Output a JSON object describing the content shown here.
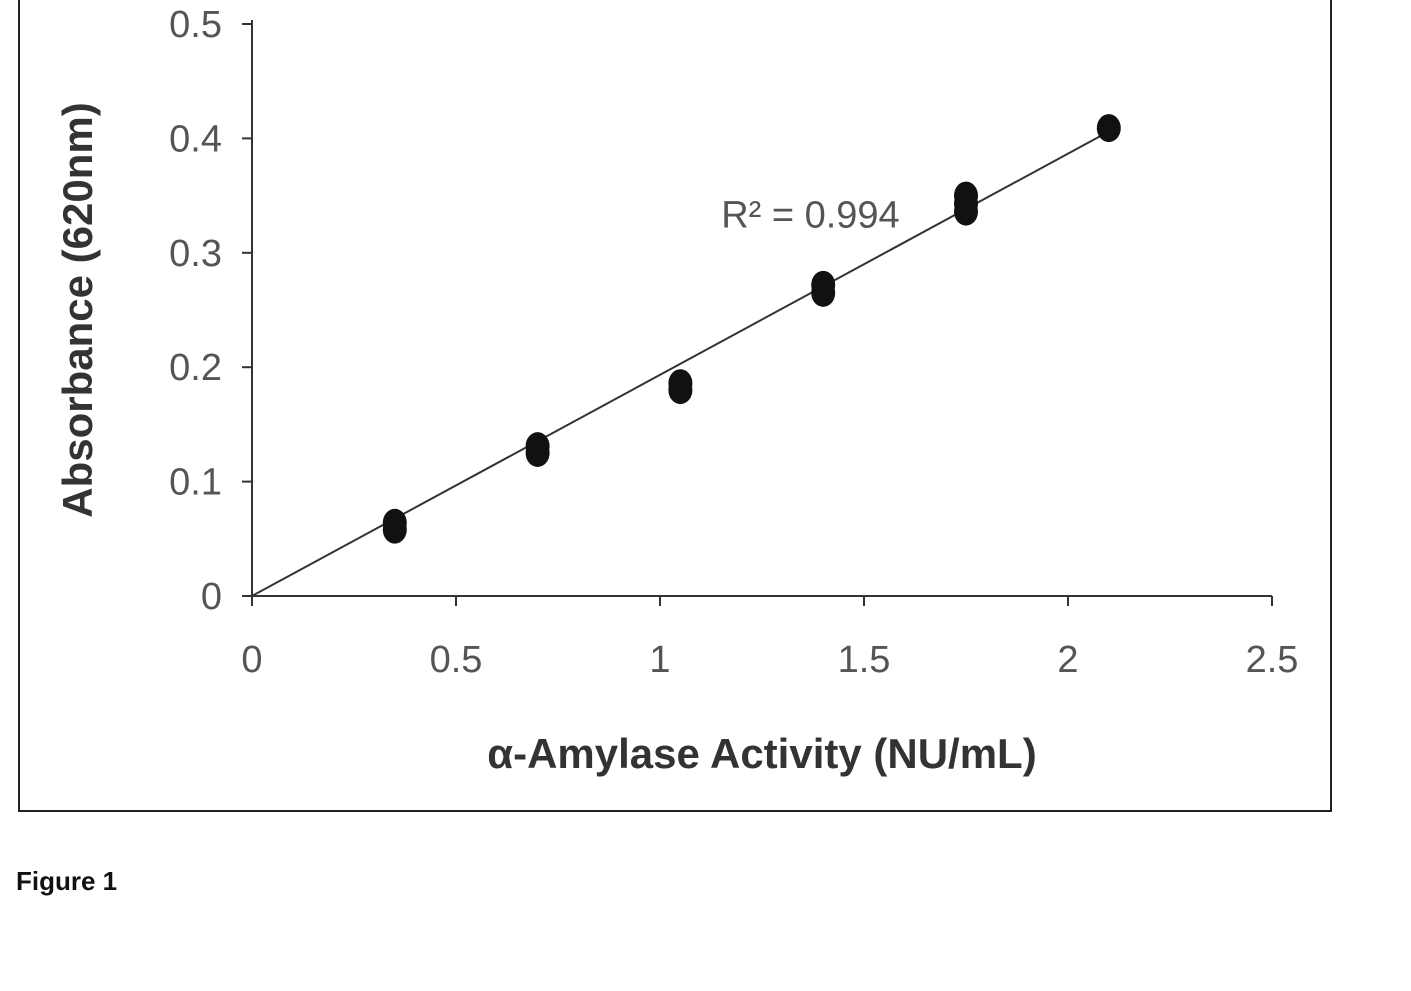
{
  "figure_caption": "Figure 1",
  "chart_data": {
    "type": "scatter",
    "xlabel": "α-Amylase Activity (NU/mL)",
    "ylabel": "Absorbance (620nm)",
    "xlim": [
      0,
      2.5
    ],
    "ylim": [
      0,
      0.5
    ],
    "x_ticks": [
      0,
      0.5,
      1,
      1.5,
      2,
      2.5
    ],
    "x_tick_labels": [
      "0",
      "0.5",
      "1",
      "1.5",
      "2",
      "2.5"
    ],
    "y_ticks": [
      0,
      0.1,
      0.2,
      0.3,
      0.4,
      0.5
    ],
    "y_tick_labels": [
      "0",
      "0.1",
      "0.2",
      "0.3",
      "0.4",
      "0.5"
    ],
    "grid": false,
    "legend": "none",
    "series": [
      {
        "points": [
          {
            "x": 0.35,
            "y": 0.064
          },
          {
            "x": 0.35,
            "y": 0.058
          },
          {
            "x": 0.7,
            "y": 0.131
          },
          {
            "x": 0.7,
            "y": 0.125
          },
          {
            "x": 1.05,
            "y": 0.186
          },
          {
            "x": 1.05,
            "y": 0.18
          },
          {
            "x": 1.4,
            "y": 0.272
          },
          {
            "x": 1.4,
            "y": 0.265
          },
          {
            "x": 1.75,
            "y": 0.35
          },
          {
            "x": 1.75,
            "y": 0.343
          },
          {
            "x": 1.75,
            "y": 0.336
          },
          {
            "x": 2.1,
            "y": 0.409
          }
        ],
        "marker_color": "#111111"
      }
    ],
    "trendline": {
      "type": "linear",
      "x_start": 0,
      "y_start": 0,
      "x_end": 2.1,
      "y_end": 0.406,
      "color": "#333333"
    },
    "annotations": [
      {
        "text": "R² = 0.994",
        "x": 1.15,
        "y": 0.315
      }
    ]
  }
}
